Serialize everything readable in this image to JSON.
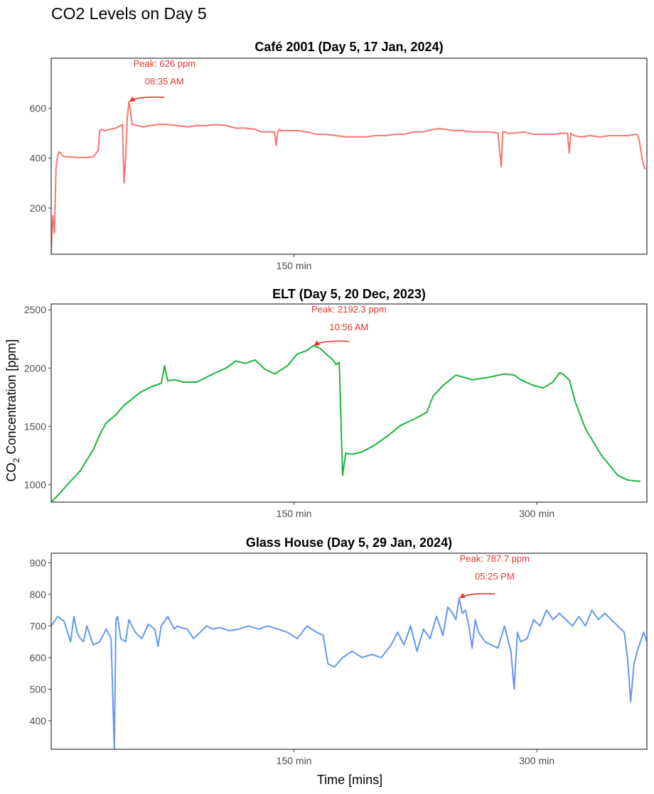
{
  "title": "CO2 Levels on Day 5",
  "chart_data": {
    "type": "line",
    "xlabel": "Time [mins]",
    "ylabel_main": "CO",
    "ylabel_sub": "2",
    "ylabel_rest": " Concentration [ppm]",
    "panels": [
      {
        "title": "Café 2001 (Day 5, 17 Jan, 2024)",
        "color": "#F8766D",
        "xlim": [
          0,
          368
        ],
        "ylim": [
          15,
          800
        ],
        "xticks": [
          150
        ],
        "xtick_labels": [
          "150 min"
        ],
        "yticks": [
          200,
          400,
          600
        ],
        "ytick_labels": [
          "200",
          "400",
          "600"
        ],
        "peak": {
          "x": 48,
          "y": 626,
          "label_value": "Peak: 626 ppm",
          "label_time": "08:35 AM"
        },
        "x": [
          0,
          1,
          2,
          3,
          4,
          5,
          6,
          7,
          9,
          12,
          16,
          21,
          26,
          29,
          30,
          31,
          33,
          36,
          40,
          44,
          45,
          46,
          47,
          48,
          49,
          50,
          53,
          57,
          61,
          66,
          72,
          78,
          84,
          90,
          96,
          102,
          108,
          114,
          120,
          126,
          130,
          134,
          138,
          139,
          140,
          141,
          142,
          146,
          152,
          158,
          164,
          170,
          176,
          182,
          188,
          194,
          200,
          206,
          212,
          218,
          224,
          230,
          236,
          240,
          244,
          248,
          254,
          260,
          270,
          276,
          278,
          279,
          280,
          282,
          286,
          292,
          298,
          304,
          310,
          316,
          319,
          320,
          321,
          323,
          327,
          333,
          339,
          345,
          351,
          357,
          360,
          362,
          363,
          364,
          365,
          366,
          367
        ],
        "values": [
          15,
          170,
          100,
          360,
          410,
          425,
          420,
          410,
          405,
          405,
          403,
          402,
          405,
          430,
          510,
          515,
          510,
          515,
          520,
          535,
          300,
          400,
          560,
          626,
          590,
          535,
          530,
          525,
          530,
          535,
          535,
          530,
          525,
          530,
          530,
          535,
          530,
          520,
          520,
          515,
          505,
          505,
          505,
          450,
          505,
          515,
          510,
          510,
          510,
          505,
          495,
          495,
          490,
          485,
          485,
          485,
          490,
          490,
          495,
          495,
          505,
          505,
          515,
          518,
          515,
          510,
          510,
          505,
          505,
          500,
          365,
          505,
          505,
          500,
          500,
          505,
          495,
          495,
          495,
          500,
          500,
          420,
          500,
          490,
          485,
          490,
          485,
          490,
          490,
          490,
          495,
          495,
          480,
          440,
          400,
          370,
          355
        ]
      },
      {
        "title": "ELT (Day 5, 20 Dec, 2023)",
        "color": "#1CB43C",
        "xlim": [
          0,
          368
        ],
        "ylim": [
          850,
          2550
        ],
        "xticks": [
          150,
          300
        ],
        "xtick_labels": [
          "150 min",
          "300 min"
        ],
        "yticks": [
          1000,
          1500,
          2000,
          2500
        ],
        "ytick_labels": [
          "1000",
          "1500",
          "2000",
          "2500"
        ],
        "peak": {
          "x": 162,
          "y": 2192.3,
          "label_value": "Peak: 2192.3 ppm",
          "label_time": "10:56 AM"
        },
        "x": [
          0,
          5,
          10,
          18,
          26,
          30,
          34,
          40,
          45,
          55,
          62,
          68,
          70,
          72,
          76,
          82,
          90,
          100,
          108,
          114,
          120,
          126,
          132,
          138,
          146,
          152,
          158,
          162,
          166,
          170,
          174,
          176,
          178,
          180,
          182,
          186,
          192,
          200,
          208,
          216,
          224,
          232,
          236,
          242,
          250,
          260,
          270,
          280,
          286,
          290,
          298,
          304,
          310,
          314,
          316,
          320,
          324,
          330,
          340,
          350,
          356,
          362,
          364
        ],
        "values": [
          850,
          920,
          1000,
          1120,
          1300,
          1430,
          1530,
          1600,
          1680,
          1790,
          1840,
          1870,
          2020,
          1890,
          1900,
          1880,
          1880,
          1950,
          2000,
          2060,
          2040,
          2070,
          1990,
          1950,
          2020,
          2120,
          2150,
          2192.3,
          2170,
          2120,
          2070,
          2030,
          2050,
          1080,
          1270,
          1260,
          1280,
          1340,
          1420,
          1510,
          1560,
          1620,
          1760,
          1850,
          1940,
          1900,
          1920,
          1950,
          1940,
          1900,
          1850,
          1830,
          1880,
          1960,
          1950,
          1900,
          1700,
          1480,
          1250,
          1080,
          1040,
          1030,
          1030
        ]
      },
      {
        "title": "Glass House (Day 5, 29 Jan, 2024)",
        "color": "#6399F0",
        "xlim": [
          0,
          368
        ],
        "ylim": [
          310,
          930
        ],
        "xticks": [
          150,
          300
        ],
        "xtick_labels": [
          "150 min",
          "300 min"
        ],
        "yticks": [
          400,
          500,
          600,
          700,
          800,
          900
        ],
        "ytick_labels": [
          "400",
          "500",
          "600",
          "700",
          "800",
          "900"
        ],
        "peak": {
          "x": 252,
          "y": 787.7,
          "label_value": "Peak: 787.7 ppm",
          "label_time": "05:25 PM"
        },
        "x": [
          0,
          4,
          8,
          12,
          14,
          16,
          18,
          20,
          22,
          26,
          30,
          34,
          37,
          39,
          40,
          41,
          43,
          46,
          48,
          52,
          56,
          60,
          64,
          66,
          68,
          72,
          76,
          78,
          80,
          84,
          88,
          92,
          96,
          100,
          104,
          110,
          116,
          122,
          128,
          134,
          140,
          146,
          152,
          158,
          164,
          168,
          171,
          175,
          180,
          186,
          192,
          198,
          204,
          210,
          214,
          218,
          222,
          226,
          230,
          234,
          238,
          242,
          245,
          248,
          250,
          252,
          254,
          256,
          258,
          260,
          262,
          264,
          268,
          272,
          276,
          280,
          284,
          286,
          288,
          290,
          294,
          298,
          302,
          306,
          310,
          314,
          318,
          322,
          326,
          330,
          334,
          338,
          342,
          346,
          350,
          354,
          356,
          358,
          360,
          362,
          364,
          366,
          368
        ],
        "values": [
          700,
          730,
          715,
          650,
          730,
          680,
          660,
          650,
          700,
          640,
          650,
          690,
          660,
          310,
          720,
          730,
          660,
          650,
          720,
          680,
          660,
          705,
          690,
          635,
          700,
          730,
          690,
          700,
          695,
          690,
          660,
          680,
          700,
          690,
          695,
          685,
          690,
          700,
          690,
          700,
          690,
          680,
          660,
          700,
          680,
          670,
          580,
          570,
          600,
          620,
          600,
          610,
          600,
          640,
          680,
          640,
          700,
          620,
          690,
          660,
          730,
          670,
          760,
          740,
          720,
          787.7,
          740,
          750,
          700,
          630,
          720,
          680,
          650,
          640,
          630,
          700,
          620,
          500,
          680,
          650,
          660,
          720,
          700,
          750,
          720,
          740,
          720,
          700,
          730,
          700,
          750,
          720,
          740,
          720,
          700,
          680,
          600,
          460,
          580,
          620,
          650,
          680,
          650
        ]
      }
    ]
  }
}
